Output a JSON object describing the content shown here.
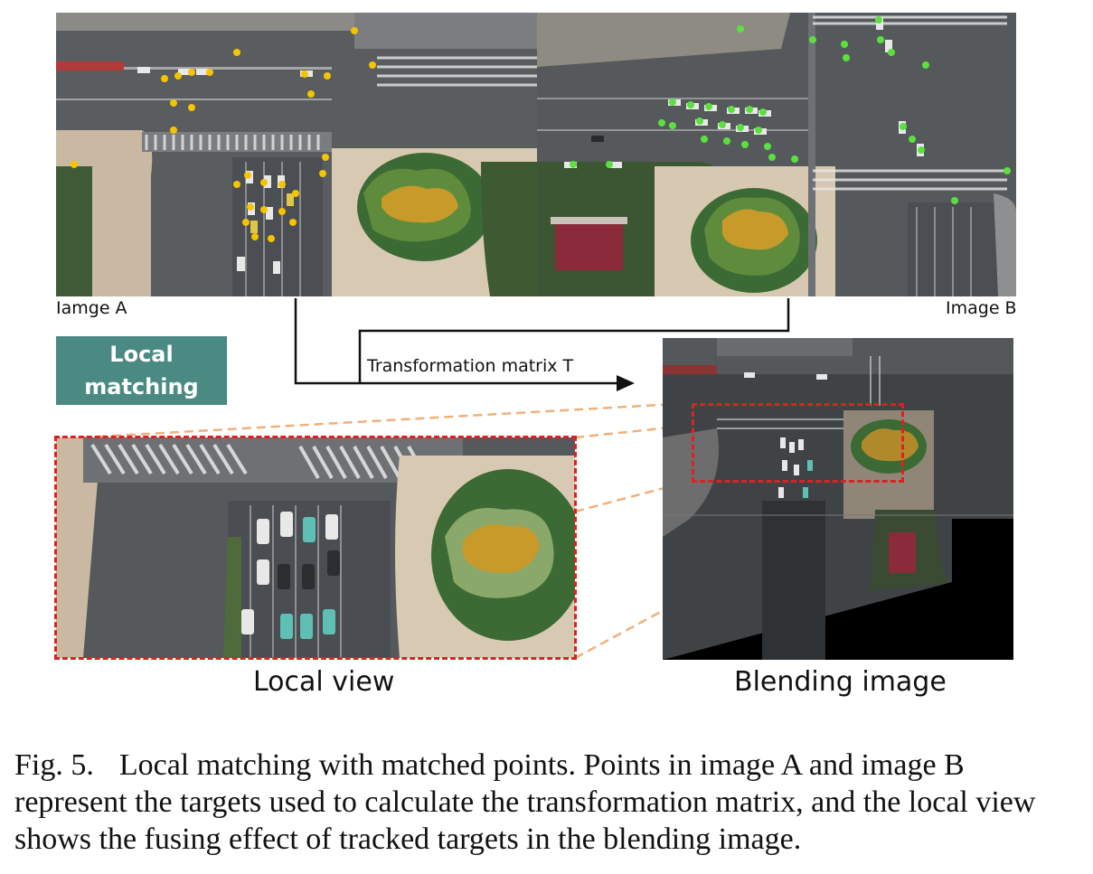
{
  "figure": {
    "image_a_label": "Iamge A",
    "image_b_label": "Image B",
    "badge_line1": "Local",
    "badge_line2": "matching",
    "arrow_label": "Transformation matrix T",
    "local_view_label": "Local view",
    "blending_label": "Blending image"
  },
  "caption": {
    "fig_number": "Fig. 5.",
    "text": "Local matching with matched points. Points in image A and image B represent the targets used to calculate the transformation matrix, and the local view shows the fusing effect of tracked targets in the blending image."
  },
  "colors": {
    "badge": "#4a8a83",
    "dashed_box": "#e02020",
    "zoom_lines": "#f0b07a",
    "points_a": "#f5c400",
    "points_b": "#5be040"
  }
}
